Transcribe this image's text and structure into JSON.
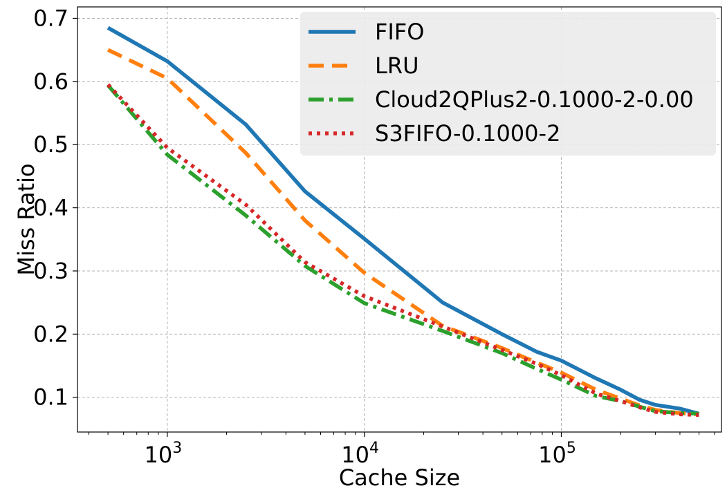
{
  "chart_data": {
    "type": "line",
    "xlabel": "Cache Size",
    "ylabel": "Miss Ratio",
    "x_scale": "log",
    "xlim": [
      350,
      650000
    ],
    "ylim": [
      0.045,
      0.718
    ],
    "grid": true,
    "legend_position": "top-right",
    "xticks": [
      {
        "value": 1000,
        "base": "10",
        "exp": "3"
      },
      {
        "value": 10000,
        "base": "10",
        "exp": "4"
      },
      {
        "value": 100000,
        "base": "10",
        "exp": "5"
      }
    ],
    "yticks": [
      {
        "value": 0.1,
        "label": "0.1"
      },
      {
        "value": 0.2,
        "label": "0.2"
      },
      {
        "value": 0.3,
        "label": "0.3"
      },
      {
        "value": 0.4,
        "label": "0.4"
      },
      {
        "value": 0.5,
        "label": "0.5"
      },
      {
        "value": 0.6,
        "label": "0.6"
      },
      {
        "value": 0.7,
        "label": "0.7"
      }
    ],
    "x": [
      500,
      1000,
      2500,
      5000,
      10000,
      25000,
      50000,
      75000,
      100000,
      150000,
      200000,
      250000,
      300000,
      400000,
      500000
    ],
    "series": [
      {
        "name": "FIFO",
        "color": "#1f77b4",
        "style": "solid",
        "values": [
          0.685,
          0.632,
          0.532,
          0.426,
          0.351,
          0.25,
          0.2,
          0.172,
          0.158,
          0.13,
          0.112,
          0.096,
          0.088,
          0.082,
          0.074
        ]
      },
      {
        "name": "LRU",
        "color": "#ff7f0e",
        "style": "dashed",
        "values": [
          0.65,
          0.605,
          0.487,
          0.38,
          0.297,
          0.213,
          0.178,
          0.155,
          0.139,
          0.112,
          0.098,
          0.087,
          0.08,
          0.075,
          0.073
        ]
      },
      {
        "name": "Cloud2QPlus2-0.1000-2-0.00",
        "color": "#2ca02c",
        "style": "dashdot",
        "values": [
          0.594,
          0.484,
          0.388,
          0.308,
          0.249,
          0.205,
          0.17,
          0.145,
          0.128,
          0.102,
          0.094,
          0.085,
          0.078,
          0.075,
          0.074
        ]
      },
      {
        "name": "S3FIFO-0.1000-2",
        "color": "#d62728",
        "style": "dotted",
        "values": [
          0.595,
          0.495,
          0.405,
          0.314,
          0.26,
          0.212,
          0.175,
          0.153,
          0.135,
          0.106,
          0.094,
          0.084,
          0.077,
          0.073,
          0.072
        ]
      }
    ]
  }
}
